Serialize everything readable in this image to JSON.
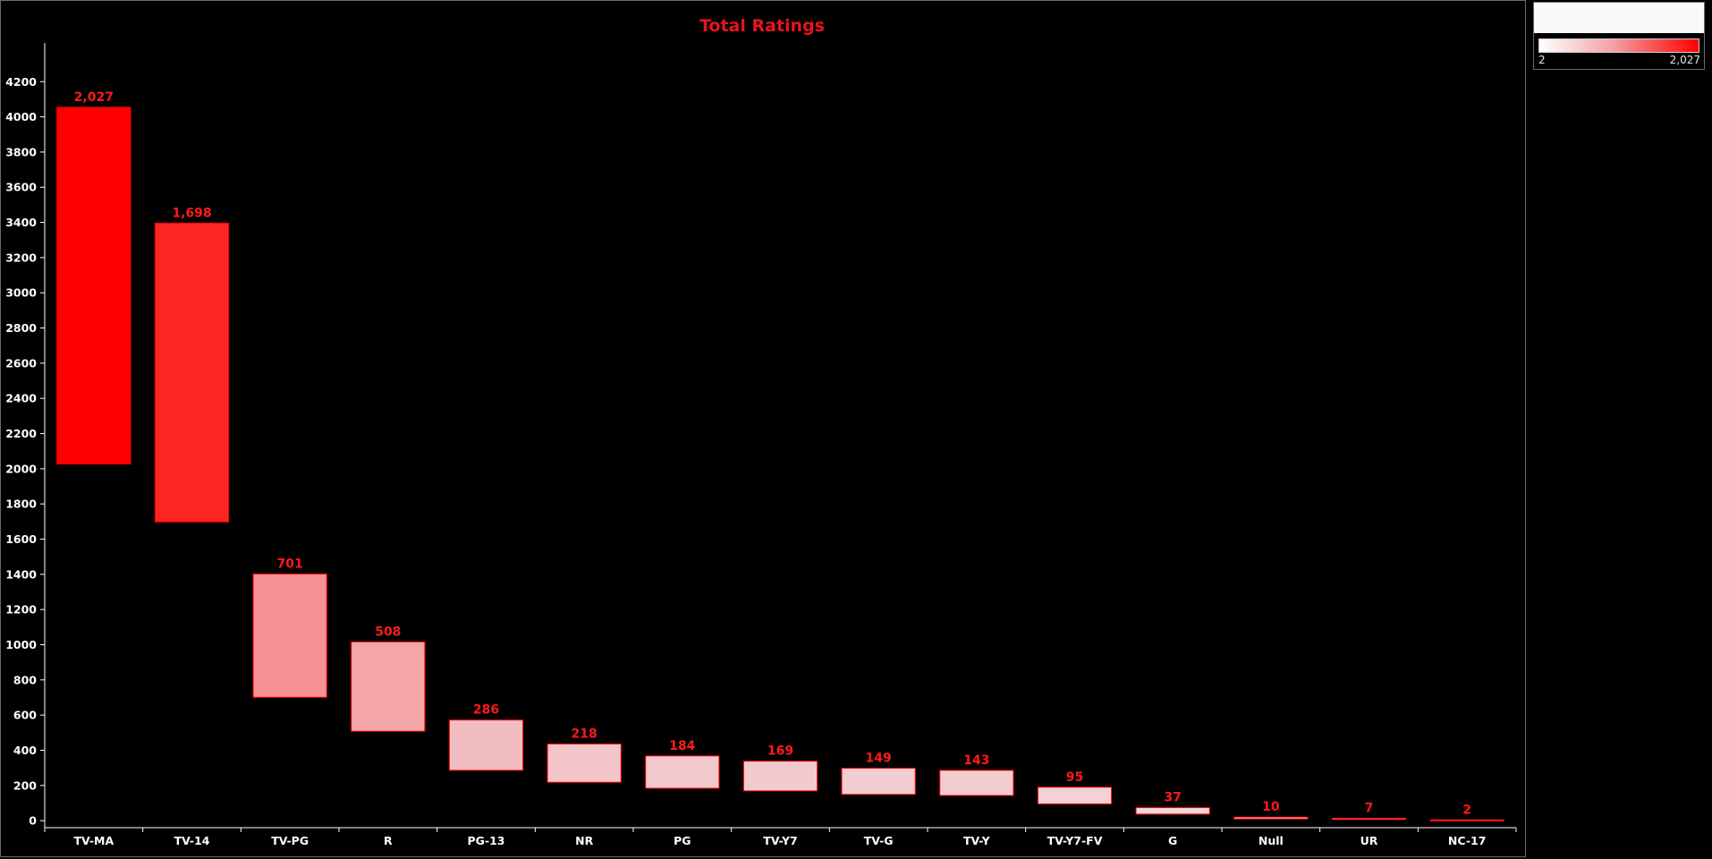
{
  "chart_data": {
    "type": "bar",
    "title": "Total Ratings",
    "xlabel": "",
    "ylabel": "",
    "categories": [
      "TV-MA",
      "TV-14",
      "TV-PG",
      "R",
      "PG-13",
      "NR",
      "PG",
      "TV-Y7",
      "TV-G",
      "TV-Y",
      "TV-Y7-FV",
      "G",
      "Null",
      "UR",
      "NC-17"
    ],
    "values": [
      2027,
      1698,
      701,
      508,
      286,
      218,
      184,
      169,
      149,
      143,
      95,
      37,
      10,
      7,
      2
    ],
    "value_labels": [
      "2,027",
      "1,698",
      "701",
      "508",
      "286",
      "218",
      "184",
      "169",
      "149",
      "143",
      "95",
      "37",
      "10",
      "7",
      "2"
    ],
    "y_ticks": [
      0,
      200,
      400,
      600,
      800,
      1000,
      1200,
      1400,
      1600,
      1800,
      2000,
      2200,
      2400,
      2600,
      2800,
      3000,
      3200,
      3400,
      3600,
      3800,
      4000,
      4200
    ],
    "ylim": [
      -40,
      4420
    ],
    "grid": false,
    "legend": "top-right",
    "color_scale": {
      "min": 2,
      "max": 2027,
      "min_label": "2",
      "max_label": "2,027",
      "low_color": "#ffffff",
      "high_color": "#ff0000"
    },
    "colors": {
      "background": "#000000",
      "label": "#ff1a1a",
      "title": "#e8141b",
      "axis": "#ffffff",
      "bar_border": "#ff0000"
    }
  }
}
